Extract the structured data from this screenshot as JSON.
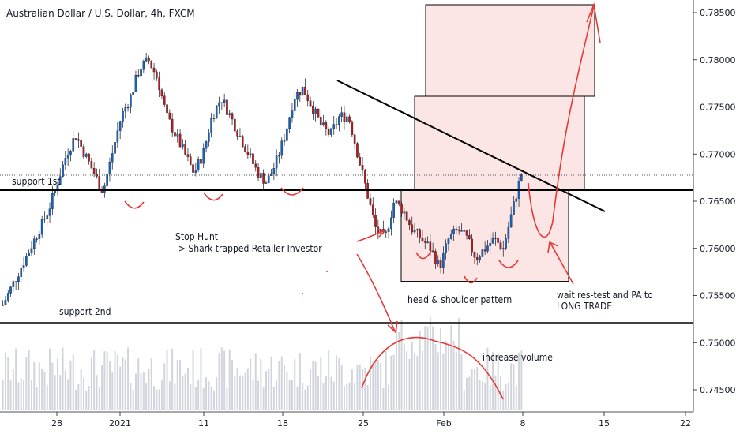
{
  "chart_data": {
    "type": "candlestick",
    "title": "Australian Dollar / U.S. Dollar, 4h, FXCM",
    "y_ticks": [
      "0.78500",
      "0.78000",
      "0.77500",
      "0.77000",
      "0.76500",
      "0.76000",
      "0.75500",
      "0.75000",
      "0.74500"
    ],
    "x_ticks": [
      "28",
      "2021",
      "11",
      "18",
      "25",
      "Feb",
      "8",
      "15",
      "22"
    ],
    "ylim": [
      0.7425,
      0.7865
    ],
    "grid": false,
    "colors": {
      "up": "#1565c0",
      "down": "#b71c1c",
      "volume": "#d1d4dc",
      "annotation": "#e53935",
      "zone": "#f8d0d0"
    },
    "levels": [
      {
        "label": "support 1st",
        "price": 0.7662
      },
      {
        "label": "support 2nd",
        "price": 0.752
      }
    ],
    "trendline": {
      "from": [
        "Jan 22",
        0.778
      ],
      "to": [
        "Feb 13",
        0.7638
      ]
    },
    "zones": [
      {
        "name": "pattern-zone",
        "from": "Jan 28",
        "to": "Feb 11",
        "low": 0.7565,
        "high": 0.7662
      },
      {
        "name": "target-zone-1",
        "from": "Feb 1",
        "to": "Feb 13",
        "low": 0.7662,
        "high": 0.776
      },
      {
        "name": "target-zone-2",
        "from": "Feb 1",
        "to": "Feb 14",
        "low": 0.776,
        "high": 0.7858
      }
    ],
    "annotations": [
      "Stop Hunt",
      "-> Shark trapped Retailer Investor",
      "head & shoulder pattern",
      "increase volume",
      "wait res-test and PA to",
      "LONG TRADE"
    ],
    "candles_approx_close": [
      0.754,
      0.756,
      0.758,
      0.76,
      0.762,
      0.764,
      0.767,
      0.77,
      0.772,
      0.77,
      0.768,
      0.766,
      0.77,
      0.774,
      0.776,
      0.779,
      0.78,
      0.778,
      0.774,
      0.772,
      0.77,
      0.768,
      0.77,
      0.774,
      0.776,
      0.774,
      0.772,
      0.77,
      0.768,
      0.767,
      0.769,
      0.772,
      0.776,
      0.777,
      0.775,
      0.773,
      0.772,
      0.774,
      0.774,
      0.77,
      0.766,
      0.762,
      0.761,
      0.765,
      0.764,
      0.762,
      0.761,
      0.76,
      0.758,
      0.761,
      0.762,
      0.761,
      0.759,
      0.76,
      0.761,
      0.76,
      0.764,
      0.768
    ]
  }
}
